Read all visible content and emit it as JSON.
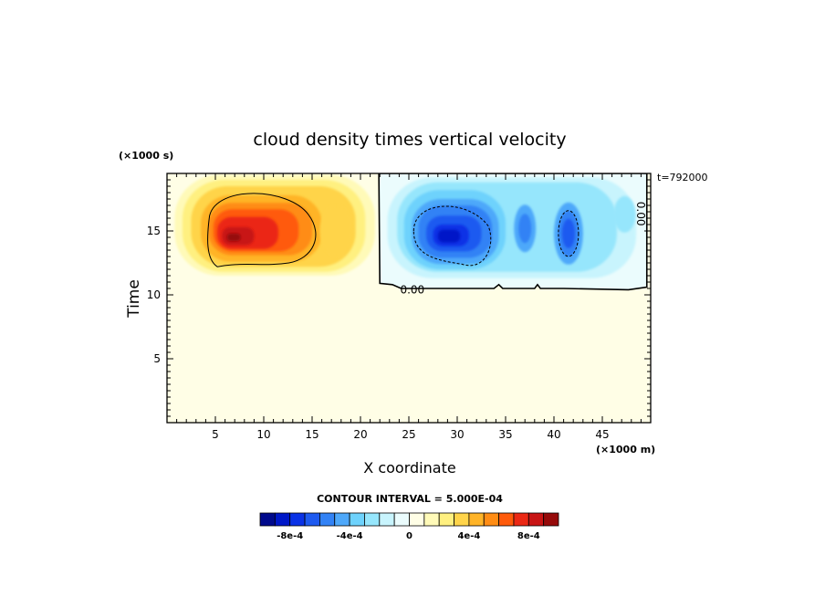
{
  "chart_data": {
    "type": "heatmap",
    "title": "cloud density times vertical velocity",
    "xlabel": "X coordinate",
    "ylabel": "Time",
    "x_units": "(×1000 m)",
    "y_units": "(×1000 s)",
    "timestamp": "t=792000",
    "xlim": [
      0,
      50
    ],
    "ylim": [
      0,
      19.5
    ],
    "x_ticks": [
      5,
      10,
      15,
      20,
      25,
      30,
      35,
      40,
      45
    ],
    "y_ticks": [
      5,
      10,
      15
    ],
    "grid": false,
    "contour_interval_text": "CONTOUR INTERVAL = 5.000E-04",
    "contour_label": "0.00",
    "colorbar": {
      "colors": [
        "#000a8c",
        "#0018c8",
        "#0a32e6",
        "#1e5af0",
        "#3282f5",
        "#4ea8fa",
        "#6ed2fc",
        "#96e6fc",
        "#c8f4fd",
        "#ebfcfd",
        "#fffee6",
        "#fffab8",
        "#fff080",
        "#ffd44a",
        "#ffb428",
        "#ff8c14",
        "#ff5a0a",
        "#eb2814",
        "#c81414",
        "#960a0a"
      ],
      "tick_labels": [
        "-8e-4",
        "-4e-4",
        "0",
        "4e-4",
        "8e-4"
      ],
      "tick_values": [
        -0.0008,
        -0.0004,
        0,
        0.0004,
        0.0008
      ],
      "vmin": -0.001,
      "vmax": 0.001
    },
    "features": [
      {
        "kind": "positive_max",
        "x": 7,
        "y": 14.5,
        "value": 0.00095
      },
      {
        "kind": "negative_min",
        "x": 29,
        "y": 14.6,
        "value": -0.00078
      },
      {
        "kind": "negative_local",
        "x": 41.5,
        "y": 14.8,
        "value": -0.0005
      },
      {
        "kind": "negative_local",
        "x": 37,
        "y": 15.2,
        "value": -0.0003
      }
    ]
  }
}
